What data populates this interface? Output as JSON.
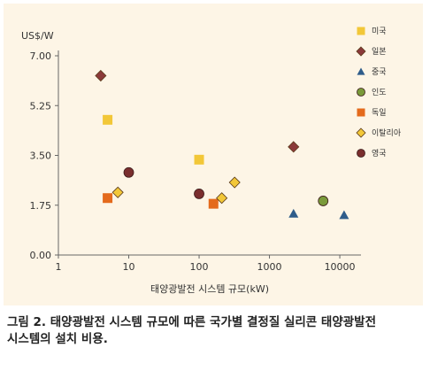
{
  "chart_data": {
    "type": "scatter",
    "title": "",
    "ylabel": "US$/W",
    "xlabel": "태양광발전 시스템 규모(kW)",
    "x_scale": "log",
    "xlim": [
      1,
      20000
    ],
    "ylim": [
      0,
      7.0
    ],
    "x_ticks": [
      "1",
      "10",
      "100",
      "1000",
      "10000"
    ],
    "x_tick_values": [
      1,
      10,
      100,
      1000,
      10000
    ],
    "y_ticks": [
      "0.00",
      "1.75",
      "3.50",
      "5.25",
      "7.00"
    ],
    "y_tick_values": [
      0,
      1.75,
      3.5,
      5.25,
      7.0
    ],
    "legend_position": "right",
    "series": [
      {
        "name": "미국",
        "shape": "square",
        "color": "#f2c738",
        "points": [
          [
            5,
            4.75
          ],
          [
            100,
            3.35
          ]
        ]
      },
      {
        "name": "일본",
        "shape": "diamond",
        "color": "#8b3a3a",
        "points": [
          [
            4,
            6.3
          ],
          [
            2200,
            3.8
          ]
        ]
      },
      {
        "name": "중국",
        "shape": "triangle",
        "color": "#2e5c8a",
        "points": [
          [
            2200,
            1.45
          ],
          [
            11500,
            1.4
          ]
        ]
      },
      {
        "name": "인도",
        "shape": "circle",
        "color": "#7a9a3a",
        "points": [
          [
            5800,
            1.9
          ]
        ]
      },
      {
        "name": "독일",
        "shape": "square",
        "color": "#e46a1c",
        "points": [
          [
            5,
            2.0
          ],
          [
            160,
            1.8
          ]
        ]
      },
      {
        "name": "이탈리아",
        "shape": "diamond",
        "color": "#f2c738",
        "points": [
          [
            7,
            2.2
          ],
          [
            210,
            2.0
          ],
          [
            320,
            2.55
          ]
        ]
      },
      {
        "name": "영국",
        "shape": "circle",
        "color": "#7a2e2e",
        "points": [
          [
            10,
            2.9
          ],
          [
            100,
            2.15
          ]
        ]
      }
    ]
  },
  "caption": {
    "line1": "그림 2. 태양광발전 시스템 규모에 따른 국가별 결정질 실리콘 태양광발전",
    "line2": "시스템의 설치 비용."
  }
}
